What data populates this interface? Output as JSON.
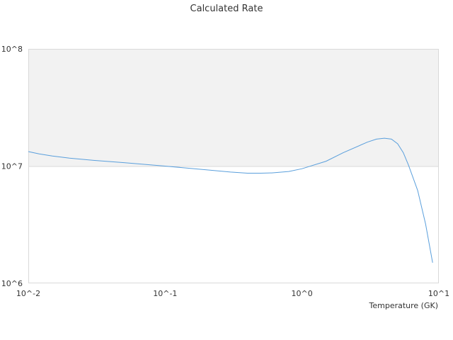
{
  "chart_data": {
    "type": "line",
    "title": "Calculated Rate",
    "xlabel": "Temperature (GK)",
    "ylabel": "",
    "x_scale": "log",
    "y_scale": "log",
    "xlim": [
      0.01,
      10
    ],
    "ylim": [
      1000000,
      100000000
    ],
    "x_ticks": [
      {
        "value": 0.01,
        "label": "10^-2"
      },
      {
        "value": 0.1,
        "label": "10^-1"
      },
      {
        "value": 1,
        "label": "10^0"
      },
      {
        "value": 10,
        "label": "10^1"
      }
    ],
    "y_ticks": [
      {
        "value": 1000000,
        "label": "10^6"
      },
      {
        "value": 10000000,
        "label": "10^7"
      },
      {
        "value": 100000000,
        "label": "10^8"
      }
    ],
    "grid": false,
    "legend": "none",
    "colors": {
      "line": "#5a9fdc",
      "band_fill": "#f2f2f2",
      "frame": "#d9d9d9",
      "text": "#333333"
    },
    "series": [
      {
        "x": [
          0.01,
          0.012,
          0.015,
          0.02,
          0.03,
          0.05,
          0.1,
          0.2,
          0.3,
          0.4,
          0.5,
          0.6,
          0.8,
          1.0,
          1.5,
          2.0,
          3.0,
          3.5,
          4.0,
          4.5,
          5.0,
          5.5,
          6.0,
          7.0,
          8.0,
          9.0
        ],
        "y": [
          13300000,
          12700000,
          12200000,
          11700000,
          11200000,
          10700000,
          10000000,
          9300000,
          8900000,
          8700000,
          8700000,
          8750000,
          9000000,
          9500000,
          11000000,
          13000000,
          16000000,
          17000000,
          17300000,
          17000000,
          15500000,
          13000000,
          10200000,
          6200000,
          3200000,
          1500000
        ]
      }
    ]
  }
}
